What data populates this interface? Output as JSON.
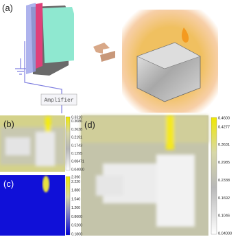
{
  "panels": {
    "a": {
      "label": "(a)",
      "amplifier": "Amplifier"
    },
    "b": {
      "label": "(b)",
      "colorbar": [
        "0.3310",
        "0.3086",
        "0.2638",
        "0.2191",
        "0.1743",
        "0.1295",
        "0.08471",
        "0.04000"
      ]
    },
    "c": {
      "label": "(c)",
      "colorbar": [
        "2.390",
        "2.220",
        "1.880",
        "1.540",
        "1.200",
        "0.8600",
        "0.5200",
        "0.1800"
      ]
    },
    "d": {
      "label": "(d)",
      "colorbar": [
        "0.4600",
        "0.4277",
        "0.3631",
        "0.2985",
        "0.2338",
        "0.1692",
        "0.1046",
        "0.04000"
      ]
    }
  }
}
